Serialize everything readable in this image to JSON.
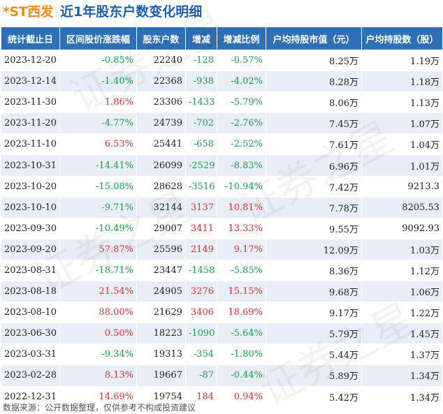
{
  "header": {
    "stock_name": "*ST西发",
    "title": "近1年股东户数变化明细"
  },
  "table": {
    "columns": [
      "统计截止日",
      "区间股价涨跌幅",
      "股东户数",
      "增减",
      "增减比例",
      "户均持股市值（元）",
      "户均持股数（股）"
    ],
    "rows": [
      {
        "date": "2023-12-20",
        "price_change": "-0.85%",
        "holders": "22240",
        "change": "-128",
        "change_pct": "-0.57%",
        "avg_value": "8.25万",
        "avg_shares": "1.19万"
      },
      {
        "date": "2023-12-14",
        "price_change": "-1.40%",
        "holders": "22368",
        "change": "-938",
        "change_pct": "-4.02%",
        "avg_value": "8.28万",
        "avg_shares": "1.18万"
      },
      {
        "date": "2023-11-30",
        "price_change": "1.86%",
        "holders": "23306",
        "change": "-1433",
        "change_pct": "-5.79%",
        "avg_value": "8.06万",
        "avg_shares": "1.13万"
      },
      {
        "date": "2023-11-20",
        "price_change": "-4.77%",
        "holders": "24739",
        "change": "-702",
        "change_pct": "-2.76%",
        "avg_value": "7.45万",
        "avg_shares": "1.07万"
      },
      {
        "date": "2023-11-10",
        "price_change": "6.53%",
        "holders": "25441",
        "change": "-658",
        "change_pct": "-2.52%",
        "avg_value": "7.61万",
        "avg_shares": "1.04万"
      },
      {
        "date": "2023-10-31",
        "price_change": "-14.41%",
        "holders": "26099",
        "change": "-2529",
        "change_pct": "-8.83%",
        "avg_value": "6.96万",
        "avg_shares": "1.01万"
      },
      {
        "date": "2023-10-20",
        "price_change": "-15.08%",
        "holders": "28628",
        "change": "-3516",
        "change_pct": "-10.94%",
        "avg_value": "7.42万",
        "avg_shares": "9213.3"
      },
      {
        "date": "2023-10-10",
        "price_change": "-9.71%",
        "holders": "32144",
        "change": "3137",
        "change_pct": "10.81%",
        "avg_value": "7.78万",
        "avg_shares": "8205.53"
      },
      {
        "date": "2023-09-30",
        "price_change": "-10.49%",
        "holders": "29007",
        "change": "3411",
        "change_pct": "13.33%",
        "avg_value": "9.55万",
        "avg_shares": "9092.93"
      },
      {
        "date": "2023-09-20",
        "price_change": "57.87%",
        "holders": "25596",
        "change": "2149",
        "change_pct": "9.17%",
        "avg_value": "12.09万",
        "avg_shares": "1.03万"
      },
      {
        "date": "2023-08-31",
        "price_change": "-18.71%",
        "holders": "23447",
        "change": "-1458",
        "change_pct": "-5.85%",
        "avg_value": "8.36万",
        "avg_shares": "1.12万"
      },
      {
        "date": "2023-08-18",
        "price_change": "21.54%",
        "holders": "24905",
        "change": "3276",
        "change_pct": "15.15%",
        "avg_value": "9.68万",
        "avg_shares": "1.06万"
      },
      {
        "date": "2023-08-10",
        "price_change": "88.00%",
        "holders": "21629",
        "change": "3406",
        "change_pct": "18.69%",
        "avg_value": "9.17万",
        "avg_shares": "1.22万"
      },
      {
        "date": "2023-06-30",
        "price_change": "0.50%",
        "holders": "18223",
        "change": "-1090",
        "change_pct": "-5.64%",
        "avg_value": "5.79万",
        "avg_shares": "1.45万"
      },
      {
        "date": "2023-03-31",
        "price_change": "-9.34%",
        "holders": "19313",
        "change": "-354",
        "change_pct": "-1.80%",
        "avg_value": "5.44万",
        "avg_shares": "1.37万"
      },
      {
        "date": "2023-02-28",
        "price_change": "8.13%",
        "holders": "19667",
        "change": "-87",
        "change_pct": "-0.44%",
        "avg_value": "5.89万",
        "avg_shares": "1.34万"
      },
      {
        "date": "2022-12-31",
        "price_change": "14.69%",
        "holders": "19754",
        "change": "184",
        "change_pct": "0.94%",
        "avg_value": "5.42万",
        "avg_shares": "1.34万"
      }
    ]
  },
  "footer": {
    "source": "数据来源：公开数据整理，仅供参考不构成投资建议"
  },
  "colors": {
    "header_bg": "#2f6fb6",
    "stock_name": "#f08a1c",
    "title": "#1f5fae",
    "positive": "#e03131",
    "negative": "#16a34a",
    "row_alt": "#e8edf7"
  },
  "watermark": "证券之星"
}
